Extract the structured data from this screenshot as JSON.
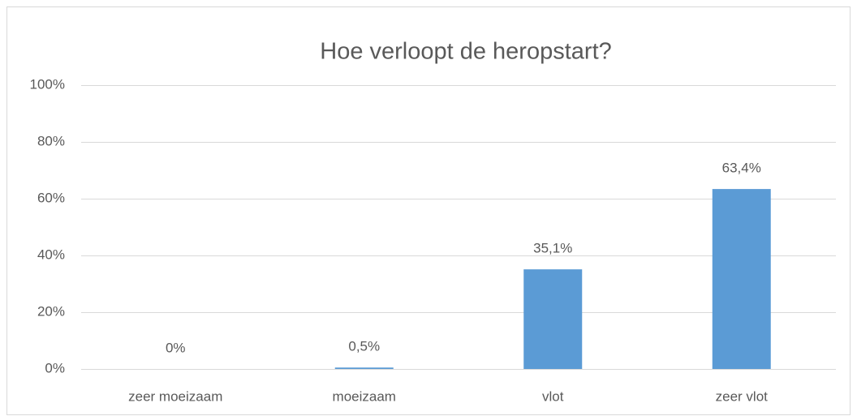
{
  "chart_data": {
    "type": "bar",
    "title": "Hoe verloopt de heropstart?",
    "categories": [
      "zeer moeizaam",
      "moeizaam",
      "vlot",
      "zeer vlot"
    ],
    "values": [
      0,
      0.5,
      35.1,
      63.4
    ],
    "value_labels": [
      "0%",
      "0,5%",
      "35,1%",
      "63,4%"
    ],
    "color": "#5b9bd5",
    "ylim": [
      0,
      100
    ],
    "yticks": [
      {
        "value": 0,
        "label": "0%"
      },
      {
        "value": 20,
        "label": "20%"
      },
      {
        "value": 40,
        "label": "40%"
      },
      {
        "value": 60,
        "label": "60%"
      },
      {
        "value": 80,
        "label": "80%"
      },
      {
        "value": 100,
        "label": "100%"
      }
    ],
    "grid": true
  }
}
